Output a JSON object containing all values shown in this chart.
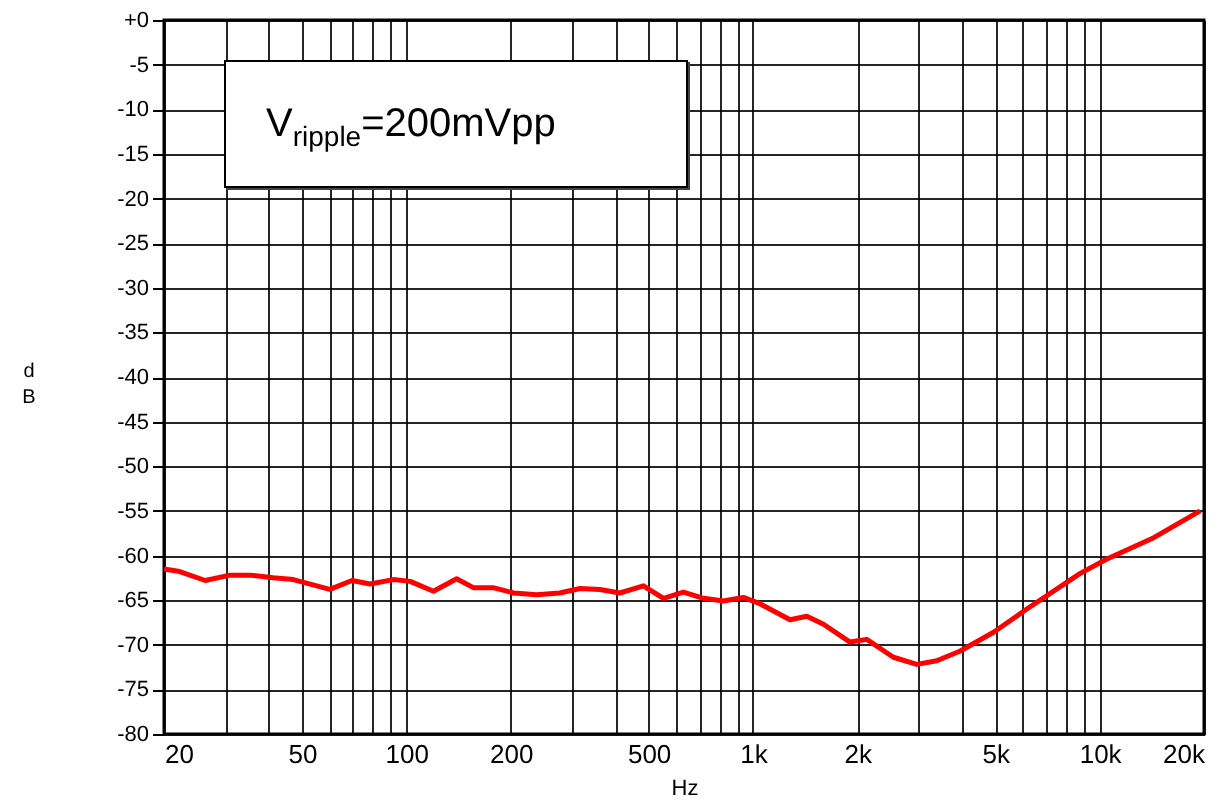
{
  "chart_data": {
    "type": "line",
    "xlabel": "Hz",
    "ylabel": "dB",
    "log": "x",
    "grid": true,
    "marker": "none",
    "line_style": "solid",
    "xlim": [
      20,
      20000
    ],
    "ylim": [
      -80,
      0
    ],
    "xticks": [
      20,
      {
        "value": 30,
        "label": null
      },
      {
        "value": 40,
        "label": null
      },
      50,
      {
        "value": 60,
        "label": null
      },
      {
        "value": 70,
        "label": null
      },
      {
        "value": 80,
        "label": null
      },
      {
        "value": 90,
        "label": null
      },
      100,
      200,
      {
        "value": 300,
        "label": null
      },
      {
        "value": 400,
        "label": null
      },
      500,
      {
        "value": 600,
        "label": null
      },
      {
        "value": 700,
        "label": null
      },
      {
        "value": 800,
        "label": null
      },
      {
        "value": 900,
        "label": null
      },
      {
        "value": 1000,
        "label": "1k"
      },
      {
        "value": 2000,
        "label": "2k"
      },
      {
        "value": 3000,
        "label": null
      },
      {
        "value": 4000,
        "label": null
      },
      {
        "value": 5000,
        "label": "5k"
      },
      {
        "value": 6000,
        "label": null
      },
      {
        "value": 7000,
        "label": null
      },
      {
        "value": 8000,
        "label": null
      },
      {
        "value": 9000,
        "label": null
      },
      {
        "value": 10000,
        "label": "10k"
      },
      {
        "value": 20000,
        "label": "20k"
      }
    ],
    "yticks": [
      {
        "value": 0,
        "label": "+0"
      },
      -5,
      -10,
      -15,
      -20,
      -25,
      -30,
      -35,
      -40,
      -45,
      -50,
      -55,
      -60,
      -65,
      -70,
      -75,
      -80
    ],
    "annotations": [
      "V$_{ripple}$=200mVpp"
    ],
    "series": [
      {
        "color": "#ff0000",
        "x": [
          20,
          22.2,
          26.3,
          31,
          35.4,
          41.3,
          47.2,
          60.2,
          69.7,
          78.6,
          91.8,
          102.6,
          119.8,
          139.7,
          156,
          178,
          204,
          238,
          277,
          317,
          362,
          413,
          483,
          552,
          630,
          720,
          822,
          938,
          1047,
          1279,
          1430,
          1597,
          1905,
          2129,
          2541,
          2967,
          3390,
          3963,
          4944,
          6166,
          8790,
          10498,
          14325,
          19500
        ],
        "values": [
          -61.5,
          -61.8,
          -62.8,
          -62.2,
          -62.2,
          -62.5,
          -62.7,
          -63.8,
          -62.8,
          -63.2,
          -62.7,
          -62.9,
          -64,
          -62.6,
          -63.6,
          -63.6,
          -64.2,
          -64.4,
          -64.2,
          -63.7,
          -63.8,
          -64.2,
          -63.4,
          -64.8,
          -64.1,
          -64.8,
          -65.1,
          -64.7,
          -65.4,
          -67.2,
          -66.8,
          -67.7,
          -69.7,
          -69.4,
          -71.4,
          -72.2,
          -71.8,
          -70.7,
          -68.6,
          -66,
          -62,
          -60.4,
          -58,
          -55
        ]
      }
    ]
  }
}
